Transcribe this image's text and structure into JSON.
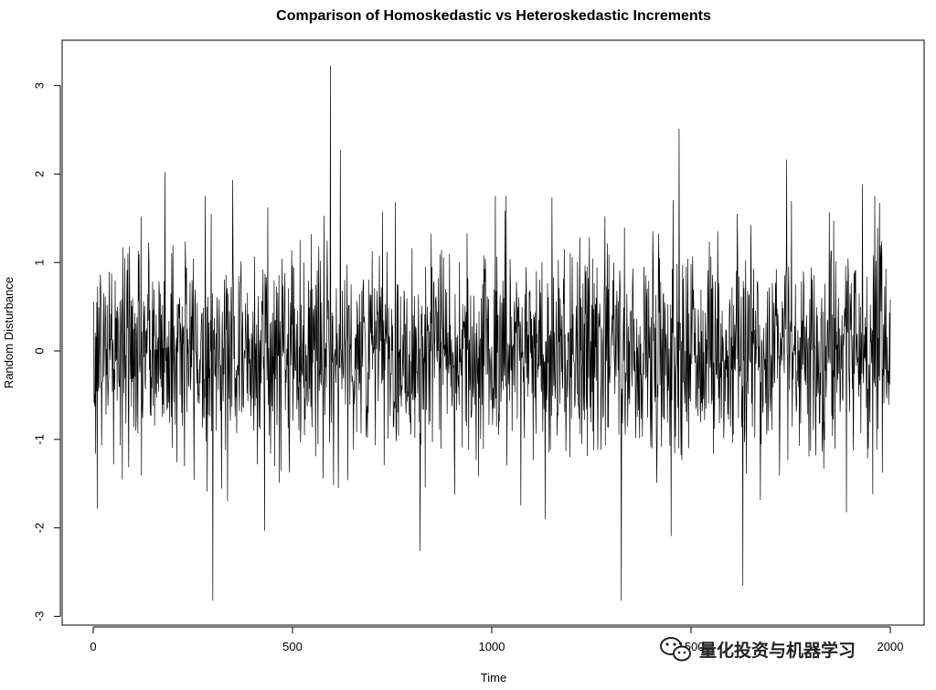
{
  "chart_data": {
    "type": "line",
    "title": "Comparison of Homoskedastic vs Heteroskedastic Increments",
    "xlabel": "Time",
    "ylabel": "Random Disturbance",
    "xlim": [
      0,
      2000
    ],
    "ylim": [
      -3,
      3
    ],
    "x_ticks": [
      0,
      500,
      1000,
      1500,
      2000
    ],
    "x_tick_labels": [
      "0",
      "500",
      "1000",
      "1500",
      "2000"
    ],
    "y_ticks": [
      -3,
      -2,
      -1,
      0,
      1,
      2,
      3
    ],
    "y_tick_labels": [
      "-3",
      "-2",
      "-1",
      "0",
      "1",
      "2",
      "3"
    ],
    "grid": false,
    "line_color": "#000000",
    "n_points": 2000,
    "series": [
      {
        "x_range": [
          1,
          2000
        ],
        "distribution_mean": 0,
        "distribution_sd": 0.6,
        "extremes": [
          {
            "x": 595,
            "y": 3.22
          },
          {
            "x": 620,
            "y": 2.27
          },
          {
            "x": 1470,
            "y": 2.51
          },
          {
            "x": 180,
            "y": 2.02
          },
          {
            "x": 1740,
            "y": 2.16
          },
          {
            "x": 1930,
            "y": 1.88
          },
          {
            "x": 350,
            "y": 1.93
          },
          {
            "x": 300,
            "y": -2.82
          },
          {
            "x": 1325,
            "y": -2.82
          },
          {
            "x": 1630,
            "y": -2.65
          },
          {
            "x": 820,
            "y": -2.26
          },
          {
            "x": 430,
            "y": -2.03
          },
          {
            "x": 1450,
            "y": -2.09
          },
          {
            "x": 10,
            "y": -1.78
          },
          {
            "x": 1890,
            "y": -1.82
          }
        ]
      }
    ]
  },
  "watermark": {
    "icon": "wechat-icon",
    "text": "量化投资与机器学习"
  }
}
